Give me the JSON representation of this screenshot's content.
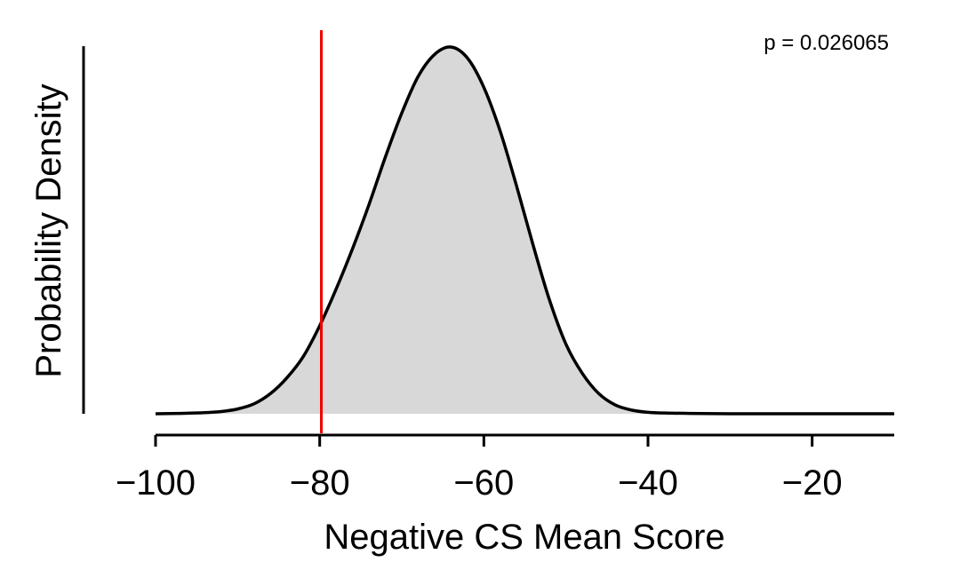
{
  "chart_data": {
    "type": "area",
    "title": "",
    "xlabel": "Negative CS Mean Score",
    "ylabel": "Probability Density",
    "xlim": [
      -100,
      -10
    ],
    "ylim": [
      0,
      1
    ],
    "x_ticks": [
      -100,
      -80,
      -60,
      -40,
      -20
    ],
    "x_tick_labels": [
      "−100",
      "−80",
      "−60",
      "−40",
      "−20"
    ],
    "y_ticks": [],
    "grid": false,
    "legend": "none",
    "annotation": "p = 0.026065",
    "reference_line": {
      "x": -79.8,
      "color": "#ee0000"
    },
    "series": [
      {
        "fill_color": "#d8d8d8",
        "line_color": "#000000",
        "x": [
          -100,
          -97,
          -94,
          -92,
          -90,
          -88,
          -86,
          -84,
          -82,
          -80,
          -78,
          -76,
          -74,
          -72,
          -70,
          -68,
          -66,
          -64,
          -62,
          -60,
          -58,
          -56,
          -54,
          -52,
          -50,
          -48,
          -46,
          -44,
          -42,
          -40,
          -38,
          -35,
          -30,
          -25,
          -20,
          -15,
          -10
        ],
        "y": [
          0.0,
          0.001,
          0.003,
          0.006,
          0.013,
          0.027,
          0.055,
          0.098,
          0.156,
          0.24,
          0.34,
          0.45,
          0.57,
          0.7,
          0.82,
          0.92,
          0.98,
          1.0,
          0.97,
          0.89,
          0.77,
          0.62,
          0.46,
          0.31,
          0.19,
          0.11,
          0.055,
          0.024,
          0.01,
          0.004,
          0.002,
          0.001,
          0.0,
          0.0,
          0.0,
          0.0,
          0.0
        ]
      }
    ]
  }
}
